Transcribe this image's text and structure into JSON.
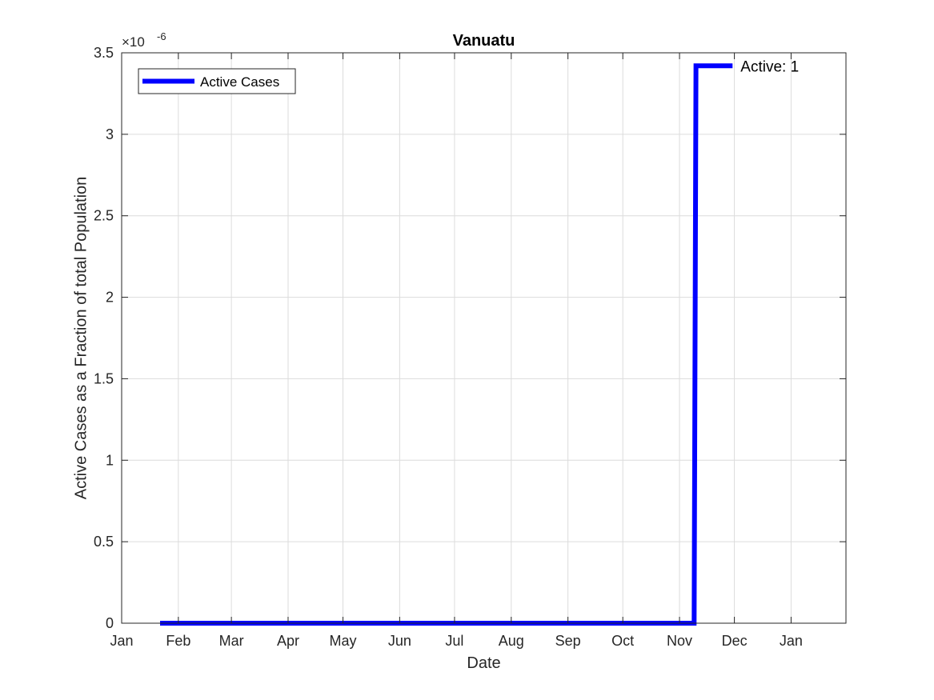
{
  "chart_data": {
    "type": "line",
    "title": "Vanuatu",
    "xlabel": "Date",
    "ylabel": "Active Cases as a Fraction of total Population",
    "y_exponent": {
      "base": "×10",
      "power": "-6"
    },
    "x_ticks": [
      "Jan",
      "Feb",
      "Mar",
      "Apr",
      "May",
      "Jun",
      "Jul",
      "Aug",
      "Sep",
      "Oct",
      "Nov",
      "Dec",
      "Jan"
    ],
    "x_tick_dates": [
      "2020-01-01",
      "2020-02-01",
      "2020-03-01",
      "2020-04-01",
      "2020-05-01",
      "2020-06-01",
      "2020-07-01",
      "2020-08-01",
      "2020-09-01",
      "2020-10-01",
      "2020-11-01",
      "2020-12-01",
      "2021-01-01"
    ],
    "x_range": [
      "2020-01-01",
      "2021-01-31"
    ],
    "y_ticks": [
      "0",
      "0.5",
      "1",
      "1.5",
      "2",
      "2.5",
      "3",
      "3.5"
    ],
    "ylim": [
      0,
      3.5e-06
    ],
    "grid": true,
    "legend_position": "top-left",
    "series": [
      {
        "name": "Active Cases",
        "color": "#0000ff",
        "x": [
          "2020-01-22",
          "2020-11-09",
          "2020-11-10",
          "2020-11-30"
        ],
        "y": [
          0,
          0,
          3.42e-06,
          3.42e-06
        ]
      }
    ],
    "annotation": {
      "text": "Active: 1",
      "x": "2020-11-30",
      "y": 3.42e-06
    }
  }
}
